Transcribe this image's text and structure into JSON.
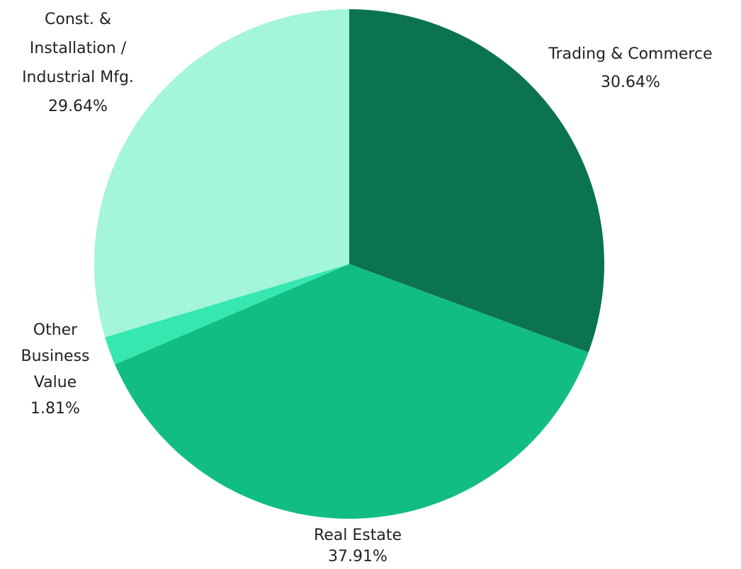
{
  "chart_data": {
    "type": "pie",
    "categories": [
      "Trading & Commerce",
      "Real Estate",
      "Other Business Value",
      "Const. & Installation / Industrial Mfg."
    ],
    "values": [
      30.64,
      37.91,
      1.81,
      29.64
    ],
    "value_labels": [
      "30.64%",
      "37.91%",
      "1.81%",
      "29.64%"
    ],
    "colors": [
      "#0b7350",
      "#12bd84",
      "#34e8b0",
      "#a3f5dc"
    ]
  }
}
